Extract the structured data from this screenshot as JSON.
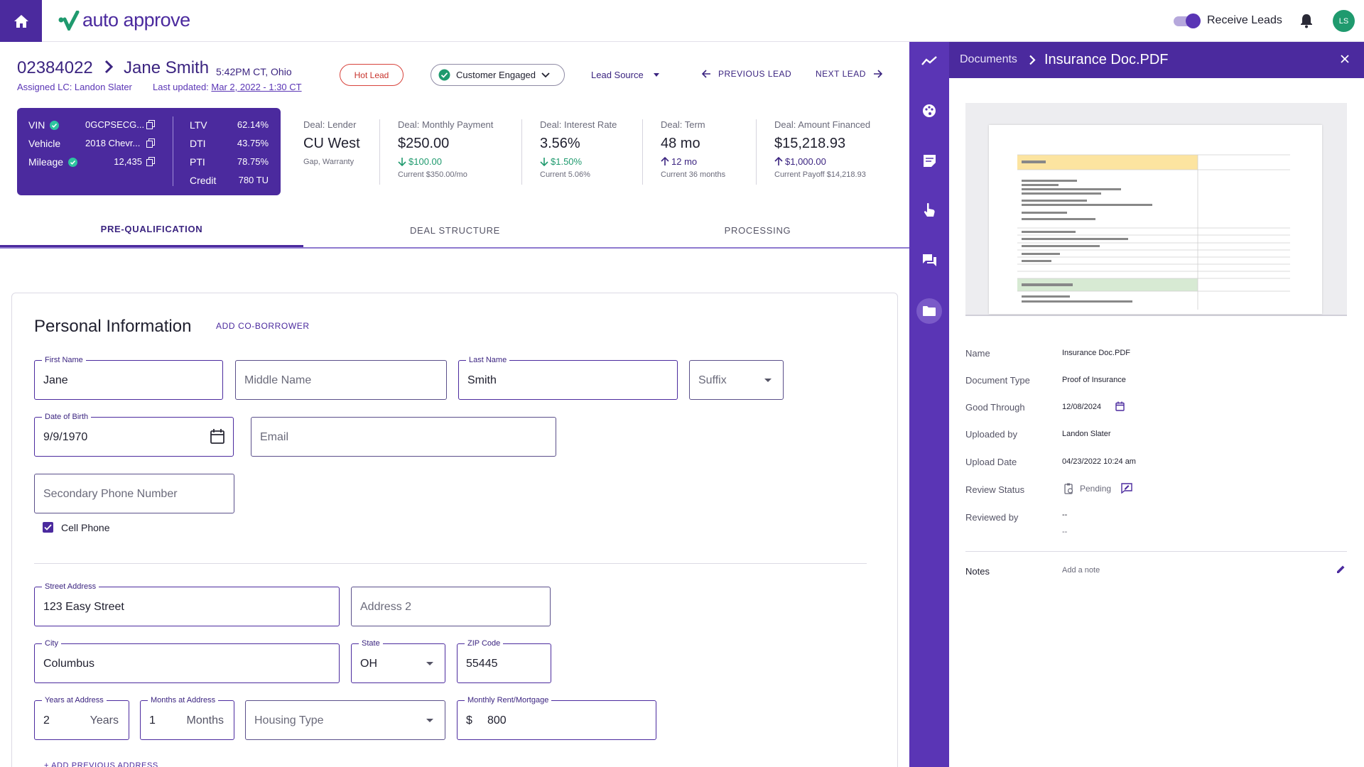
{
  "topbar": {
    "logo_text": "auto approve",
    "receive_leads_label": "Receive Leads",
    "avatar_initials": "LS"
  },
  "lead": {
    "id": "02384022",
    "name": "Jane Smith",
    "time_location": "5:42PM CT, Ohio",
    "assigned": "Assigned LC: Landon Slater",
    "updated_label": "Last updated:",
    "updated_value": "Mar 2, 2022 - 1:30 CT",
    "hot_lead": "Hot Lead",
    "status": "Customer Engaged",
    "lead_source": "Lead Source",
    "prev_lead": "PREVIOUS LEAD",
    "next_lead": "NEXT LEAD"
  },
  "vehicle_card": {
    "vin_label": "VIN",
    "vin_value": "0GCPSECG...",
    "vehicle_label": "Vehicle",
    "vehicle_value": "2018 Chevr...",
    "mileage_label": "Mileage",
    "mileage_value": "12,435",
    "ltv_label": "LTV",
    "ltv_value": "62.14%",
    "dti_label": "DTI",
    "dti_value": "43.75%",
    "pti_label": "PTI",
    "pti_value": "78.75%",
    "credit_label": "Credit",
    "credit_value": "780 TU"
  },
  "deal": {
    "lender": {
      "title": "Deal: Lender",
      "value": "CU West",
      "sub": "Gap, Warranty"
    },
    "payment": {
      "title": "Deal: Monthly Payment",
      "value": "$250.00",
      "delta": "$100.00",
      "current": "Current $350.00/mo"
    },
    "rate": {
      "title": "Deal: Interest Rate",
      "value": "3.56%",
      "delta": "$1.50%",
      "current": "Current 5.06%"
    },
    "term": {
      "title": "Deal: Term",
      "value": "48 mo",
      "delta": "12 mo",
      "current": "Current 36 months"
    },
    "financed": {
      "title": "Deal: Amount Financed",
      "value": "$15,218.93",
      "delta": "$1,000.00",
      "current": "Current Payoff $14,218.93"
    }
  },
  "tabs": {
    "pre": "PRE-QUALIFICATION",
    "deal": "DEAL STRUCTURE",
    "processing": "PROCESSING"
  },
  "form": {
    "title": "Personal Information",
    "add_coborrower": "ADD CO-BORROWER",
    "first_name_label": "First Name",
    "first_name": "Jane",
    "middle_name_ph": "Middle Name",
    "last_name_label": "Last Name",
    "last_name": "Smith",
    "suffix_ph": "Suffix",
    "dob_label": "Date of Birth",
    "dob": "9/9/1970",
    "email_ph": "Email",
    "secondary_phone_ph": "Secondary Phone Number",
    "cell_phone": "Cell Phone",
    "street_label": "Street Address",
    "street": "123 Easy Street",
    "address2_ph": "Address 2",
    "city_label": "City",
    "city": "Columbus",
    "state_label": "State",
    "state": "OH",
    "zip_label": "ZIP Code",
    "zip": "55445",
    "years_label": "Years at Address",
    "years": "2",
    "years_suffix": "Years",
    "months_label": "Months at Address",
    "months": "1",
    "months_suffix": "Months",
    "housing_ph": "Housing Type",
    "rent_label": "Monthly Rent/Mortgage",
    "rent_prefix": "$",
    "rent": "800",
    "add_previous": "+ ADD PREVIOUS ADDRESS"
  },
  "document": {
    "breadcrumb_parent": "Documents",
    "breadcrumb_current": "Insurance Doc.PDF",
    "name_label": "Name",
    "name_value": "Insurance Doc.PDF",
    "type_label": "Document Type",
    "type_value": "Proof of Insurance",
    "good_label": "Good Through",
    "good_value": "12/08/2024",
    "uploaded_by_label": "Uploaded by",
    "uploaded_by_value": "Landon Slater",
    "upload_date_label": "Upload Date",
    "upload_date_value": "04/23/2022 10:24 am",
    "review_label": "Review Status",
    "review_value": "Pending",
    "reviewed_by_label": "Reviewed by",
    "reviewed_by_value": "--",
    "reviewed_by_value2": "--",
    "notes_label": "Notes",
    "notes_ph": "Add a note"
  },
  "colors": {
    "brand": "#4b2a9e",
    "rail": "#5a35b5",
    "positive": "#1f9a6e",
    "hot": "#d8433c"
  }
}
